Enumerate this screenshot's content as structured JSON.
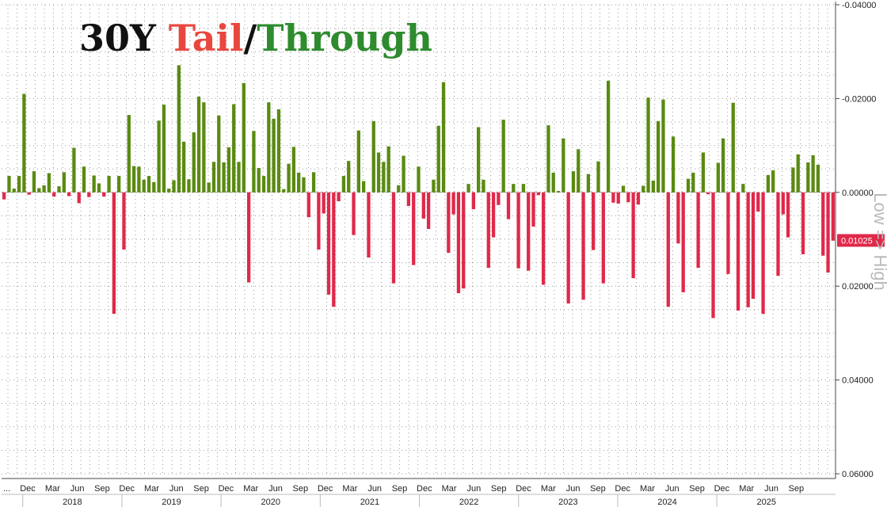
{
  "chart_data": {
    "type": "bar",
    "title_parts": [
      {
        "text": "30Y ",
        "color": "#111111"
      },
      {
        "text": "Tail",
        "color": "#e8473f"
      },
      {
        "text": "/",
        "color": "#111111"
      },
      {
        "text": "Through",
        "color": "#2e8b2e"
      }
    ],
    "y_axis_side_label": "Low => High",
    "y_inverted": true,
    "ylim": [
      -0.04,
      0.06
    ],
    "yticks": [
      {
        "value": -0.04,
        "label": "-0.04000"
      },
      {
        "value": -0.02,
        "label": "-0.02000"
      },
      {
        "value": 0.0,
        "label": "0.00000"
      },
      {
        "value": 0.02,
        "label": "0.02000"
      },
      {
        "value": 0.04,
        "label": "0.04000"
      },
      {
        "value": 0.06,
        "label": "0.06000"
      }
    ],
    "last_value_label": "0.01025",
    "last_value": 0.01025,
    "colors": {
      "through": "#5a8a12",
      "tail": "#e0294a",
      "last_value_bg": "#e0294a"
    },
    "x_start_label": "...",
    "month_labels": [
      "Dec",
      "Mar",
      "Jun",
      "Sep",
      "Dec",
      "Mar",
      "Jun",
      "Sep",
      "Dec",
      "Mar",
      "Jun",
      "Sep",
      "Dec",
      "Mar",
      "Jun",
      "Sep",
      "Dec",
      "Mar",
      "Jun",
      "Sep",
      "Dec",
      "Mar",
      "Jun",
      "Sep",
      "Dec",
      "Mar",
      "Jun",
      "Sep",
      "Dec",
      "Mar",
      "Jun",
      "Sep"
    ],
    "years": [
      "2018",
      "2019",
      "2020",
      "2021",
      "2022",
      "2023",
      "2024",
      "2025"
    ],
    "values": [
      0.0015,
      -0.0035,
      -0.0008,
      -0.0035,
      -0.021,
      0.0005,
      -0.0045,
      -0.0009,
      -0.0015,
      -0.0041,
      0.0009,
      -0.0013,
      -0.0043,
      0.0008,
      -0.0095,
      0.0023,
      -0.0055,
      0.001,
      -0.0036,
      -0.0019,
      0.0009,
      -0.0035,
      0.0259,
      -0.0035,
      0.0122,
      -0.0165,
      -0.0056,
      -0.0055,
      -0.0027,
      -0.0035,
      -0.0022,
      -0.0153,
      -0.0187,
      -0.0008,
      -0.0026,
      -0.0271,
      -0.0108,
      -0.0028,
      -0.0128,
      -0.0204,
      -0.0192,
      -0.0021,
      -0.0065,
      -0.0164,
      -0.0064,
      -0.0096,
      -0.0188,
      -0.0065,
      -0.0233,
      0.0192,
      -0.0131,
      -0.0052,
      -0.0035,
      -0.0192,
      -0.0157,
      -0.0177,
      -0.0007,
      -0.0061,
      -0.0097,
      -0.0042,
      -0.0032,
      0.0053,
      -0.0043,
      0.0122,
      0.0045,
      0.0218,
      0.0244,
      0.0019,
      -0.0035,
      -0.0067,
      0.0091,
      -0.0132,
      -0.0024,
      0.0139,
      -0.0152,
      -0.0085,
      -0.0065,
      -0.0098,
      0.0194,
      -0.0015,
      -0.0078,
      0.0029,
      0.0155,
      -0.0055,
      0.0056,
      0.0078,
      -0.0027,
      -0.0142,
      -0.0235,
      0.0129,
      0.0047,
      0.0215,
      0.0205,
      -0.0018,
      0.0036,
      -0.0139,
      -0.0027,
      0.0161,
      0.0096,
      0.0027,
      -0.0155,
      0.0057,
      -0.0018,
      0.0162,
      -0.0018,
      0.0167,
      0.0073,
      0.0006,
      0.0197,
      -0.0143,
      -0.0042,
      -0.0003,
      -0.0115,
      0.0237,
      -0.0045,
      -0.0092,
      0.0229,
      -0.0039,
      0.0123,
      -0.0066,
      0.0194,
      -0.0238,
      0.0022,
      0.0024,
      -0.0014,
      0.0021,
      0.0183,
      0.0026,
      -0.0014,
      -0.0202,
      -0.0025,
      -0.0152,
      -0.0198,
      0.0244,
      -0.0119,
      0.0109,
      0.0213,
      -0.0029,
      -0.0042,
      0.0161,
      -0.0085,
      0.0004,
      0.0268,
      -0.0063,
      -0.0115,
      0.0174,
      -0.0191,
      0.0252,
      -0.0018,
      0.0245,
      0.0227,
      0.0041,
      0.0259,
      -0.0037,
      -0.0047,
      0.0178,
      0.0047,
      0.0096,
      -0.0053,
      -0.0081,
      0.0132,
      -0.0064,
      -0.0079,
      -0.0059,
      0.0135,
      0.0171,
      0.0103
    ]
  }
}
